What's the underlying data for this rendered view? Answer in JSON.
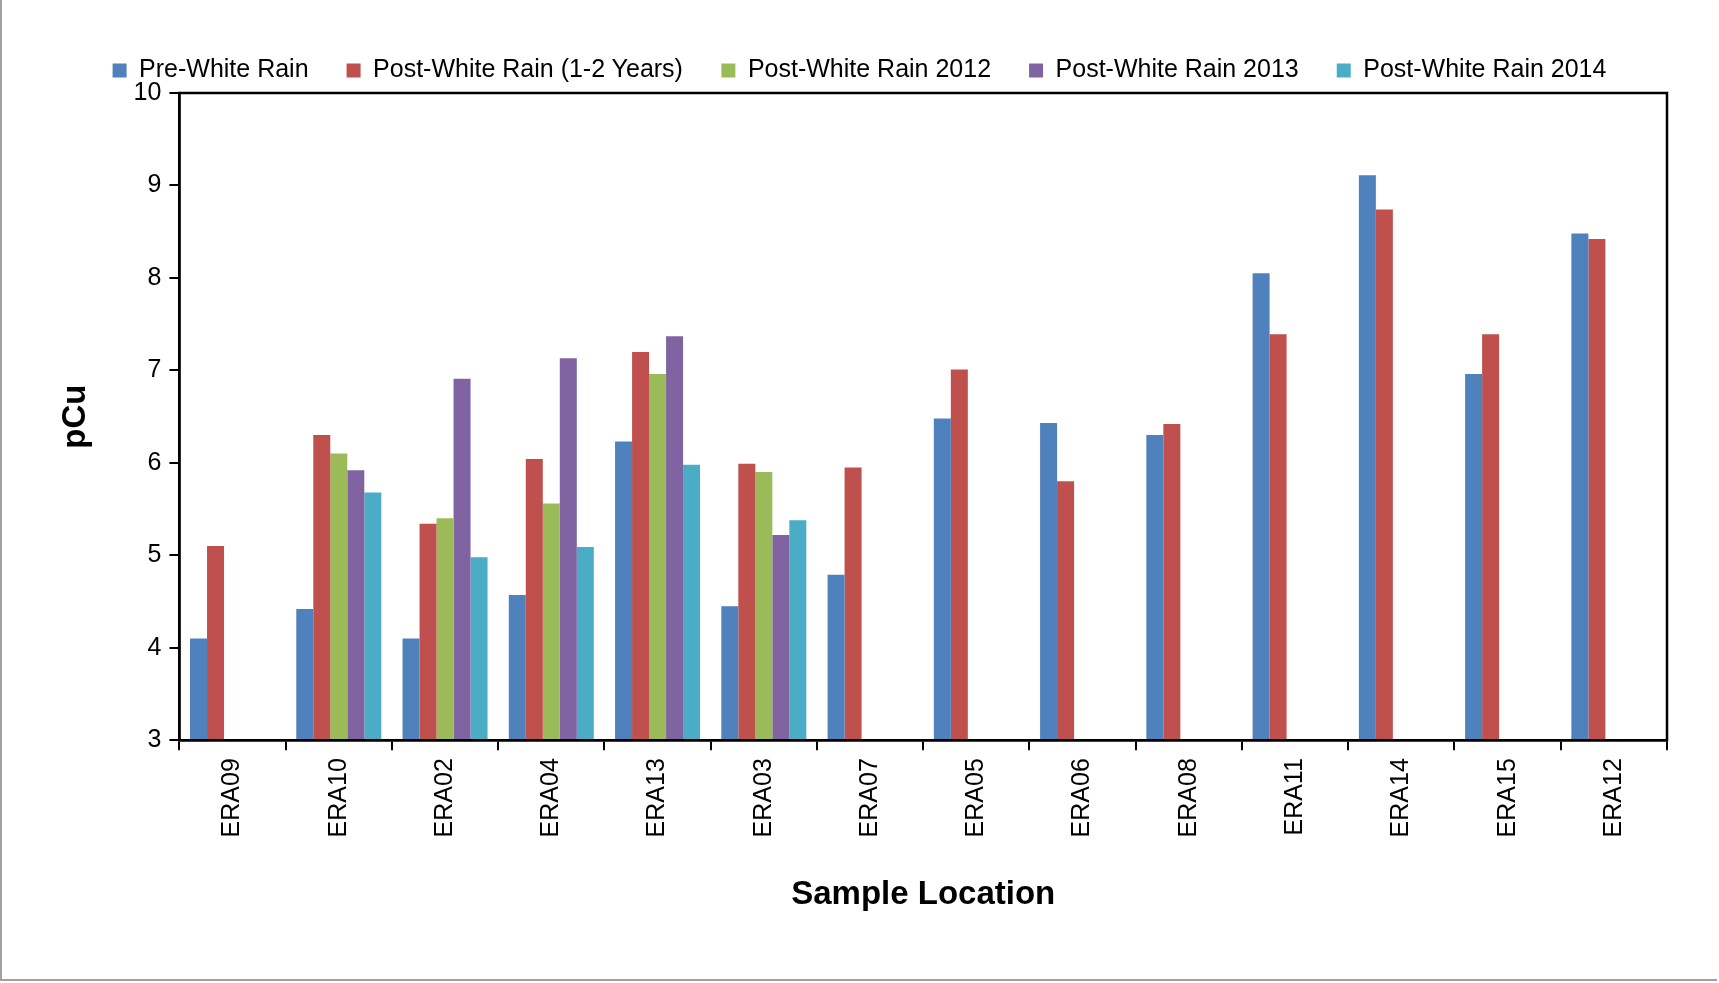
{
  "chart_data": {
    "type": "bar",
    "xlabel": "Sample Location",
    "ylabel": "pCu",
    "categories": [
      "ERA09",
      "ERA10",
      "ERA02",
      "ERA04",
      "ERA13",
      "ERA03",
      "ERA07",
      "ERA05",
      "ERA06",
      "ERA08",
      "ERA11",
      "ERA14",
      "ERA15",
      "ERA12"
    ],
    "series": [
      {
        "name": "Pre-White Rain",
        "color": "#4f81bd",
        "values": [
          4.1,
          4.42,
          4.1,
          4.57,
          6.23,
          4.45,
          4.79,
          6.48,
          6.43,
          6.3,
          8.05,
          9.11,
          6.96,
          8.48
        ]
      },
      {
        "name": "Post-White Rain (1-2 Years)",
        "color": "#c0504d",
        "values": [
          5.1,
          6.3,
          5.34,
          6.04,
          7.2,
          5.99,
          5.95,
          7.01,
          5.8,
          6.42,
          7.39,
          8.74,
          7.39,
          8.42
        ]
      },
      {
        "name": "Post-White Rain 2012",
        "color": "#9bbb59",
        "values": [
          null,
          6.1,
          5.4,
          5.56,
          6.96,
          5.9,
          null,
          null,
          null,
          null,
          null,
          null,
          null,
          null
        ]
      },
      {
        "name": "Post-White Rain 2013",
        "color": "#8064a2",
        "values": [
          null,
          5.92,
          6.91,
          7.13,
          7.37,
          5.22,
          null,
          null,
          null,
          null,
          null,
          null,
          null,
          null
        ]
      },
      {
        "name": "Post-White Rain 2014",
        "color": "#4bacc6",
        "values": [
          null,
          5.68,
          4.98,
          5.09,
          5.98,
          5.38,
          null,
          null,
          null,
          null,
          null,
          null,
          null,
          null
        ]
      }
    ],
    "ylim": [
      3,
      10
    ],
    "yticks": [
      3,
      4,
      5,
      6,
      7,
      8,
      9,
      10
    ],
    "grid": false,
    "legend": "top"
  }
}
